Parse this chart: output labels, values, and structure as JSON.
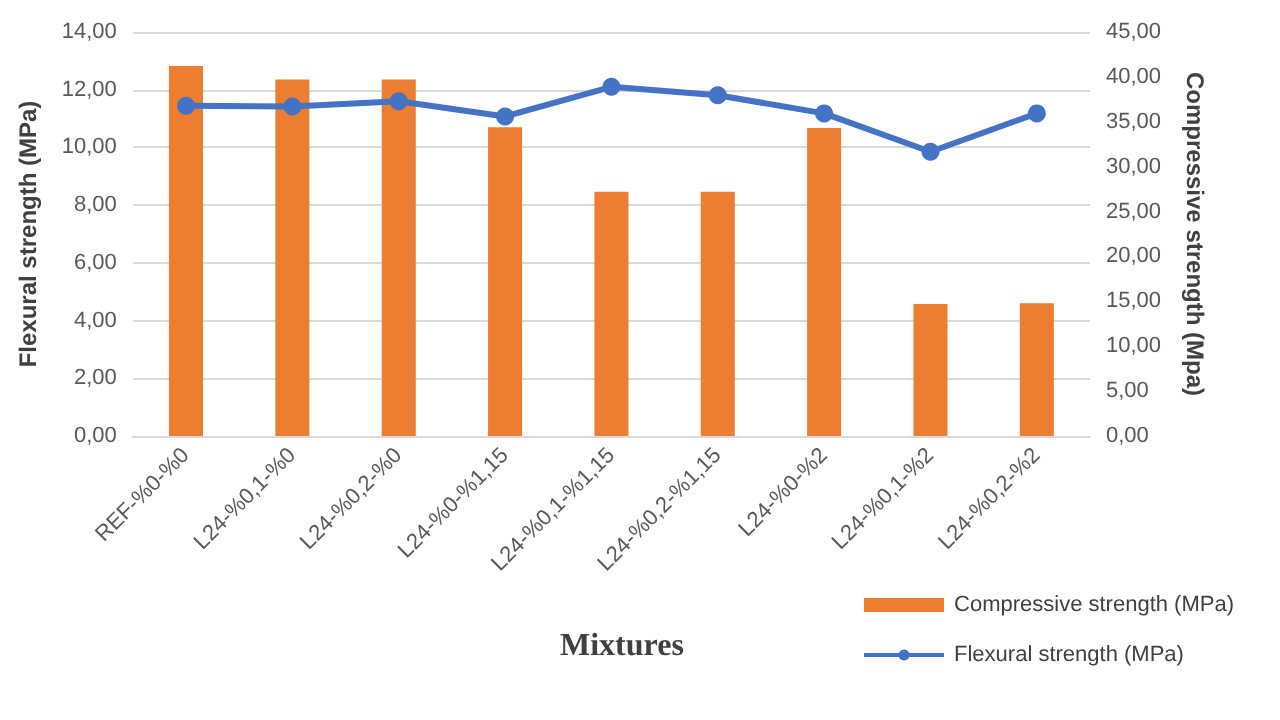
{
  "chart_data": {
    "type": "bar",
    "xlabel": "Mixtures",
    "ylabel": "Flexural strength (MPa)",
    "y2label": "Compressive strength (Mpa)",
    "categories": [
      "REF-%0-%0",
      "L24-%0,1-%0",
      "L24-%0,2-%0",
      "L24-%0-%1,15",
      "L24-%0,1-%1,15",
      "L24-%0,2-%1,15",
      "L24-%0-%2",
      "L24-%0,1-%2",
      "L24-%0,2-%2"
    ],
    "series": [
      {
        "name": "Compressive strength (MPa)",
        "axis": "y2",
        "color": "#ed7d31",
        "values": [
          41.2,
          39.7,
          39.7,
          34.4,
          27.2,
          27.2,
          34.3,
          14.7,
          14.8
        ]
      },
      {
        "name": "Flexural strength (MPa)",
        "type": "line",
        "axis": "y",
        "color": "#4472c4",
        "marker": "circle",
        "values": [
          11.44,
          11.42,
          11.6,
          11.07,
          12.1,
          11.81,
          11.18,
          9.85,
          11.18
        ]
      }
    ],
    "ylim": [
      0,
      14
    ],
    "yticks": [
      {
        "value": 0,
        "label": "0,00"
      },
      {
        "value": 2,
        "label": "2,00"
      },
      {
        "value": 4,
        "label": "4,00"
      },
      {
        "value": 6,
        "label": "6,00"
      },
      {
        "value": 8,
        "label": "8,00"
      },
      {
        "value": 10,
        "label": "10,00"
      },
      {
        "value": 12,
        "label": "12,00"
      },
      {
        "value": 14,
        "label": "14,00"
      }
    ],
    "y2lim": [
      0,
      45
    ],
    "y2ticks": [
      {
        "value": 0,
        "label": "0,00"
      },
      {
        "value": 5,
        "label": "5,00"
      },
      {
        "value": 10,
        "label": "10,00"
      },
      {
        "value": 15,
        "label": "15,00"
      },
      {
        "value": 20,
        "label": "20,00"
      },
      {
        "value": 25,
        "label": "25,00"
      },
      {
        "value": 30,
        "label": "30,00"
      },
      {
        "value": 35,
        "label": "35,00"
      },
      {
        "value": 40,
        "label": "40,00"
      },
      {
        "value": 45,
        "label": "45,00"
      }
    ],
    "grid": "y",
    "legend": "bottom right"
  }
}
